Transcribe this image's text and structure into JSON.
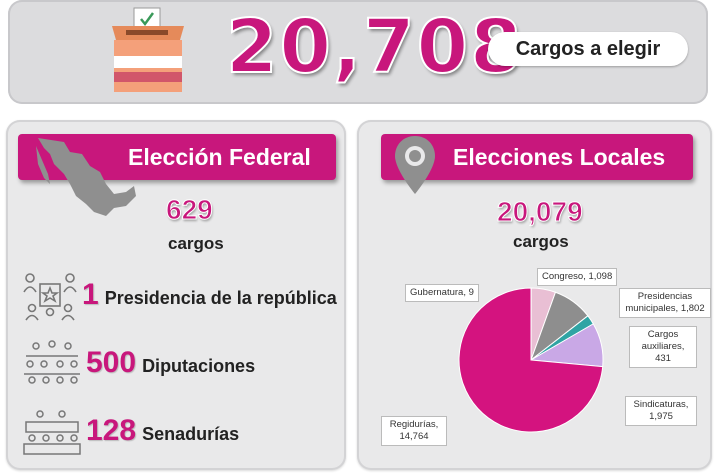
{
  "header": {
    "total": "20,708",
    "total_label": "Cargos a elegir",
    "ballot_icon": "ballot-box-icon"
  },
  "federal": {
    "title": "Elección Federal",
    "count": "629",
    "count_label": "cargos",
    "map_icon": "mexico-map-icon",
    "items": [
      {
        "number": "1",
        "label": "Presidencia de la república",
        "icon": "presidency-icon"
      },
      {
        "number": "500",
        "label": "Diputaciones",
        "icon": "deputies-icon"
      },
      {
        "number": "128",
        "label": "Senadurías",
        "icon": "senate-icon"
      }
    ]
  },
  "local": {
    "title": "Elecciones Locales",
    "count": "20,079",
    "count_label": "cargos",
    "pin_icon": "location-pin-icon"
  },
  "chart_data": {
    "type": "pie",
    "slices": [
      {
        "label": "Gubernatura, 9",
        "name": "Gubernatura",
        "value": 9,
        "color": "#7b2c5f"
      },
      {
        "label": "Congreso, 1,098",
        "name": "Congreso",
        "value": 1098,
        "color": "#e9bfd4"
      },
      {
        "label": "Presidencias municipales, 1,802",
        "name": "Presidencias municipales",
        "value": 1802,
        "color": "#8e8e8e"
      },
      {
        "label": "Cargos auxiliares, 431",
        "name": "Cargos auxiliares",
        "value": 431,
        "color": "#2fa4a4"
      },
      {
        "label": "Sindicaturas, 1,975",
        "name": "Sindicaturas",
        "value": 1975,
        "color": "#c9a8e6"
      },
      {
        "label": "Regidurías, 14,764",
        "name": "Regidurías",
        "value": 14764,
        "color": "#d4137f"
      }
    ]
  },
  "colors": {
    "accent": "#c8177c",
    "panel": "#e9e9ea"
  }
}
